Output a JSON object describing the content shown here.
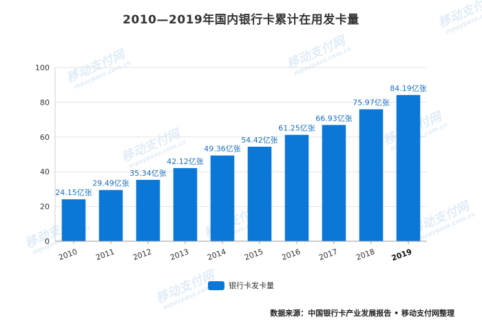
{
  "chart_data": {
    "type": "bar",
    "title": "2010—2019年国内银行卡累计在用发卡量",
    "categories": [
      "2010",
      "2011",
      "2012",
      "2013",
      "2014",
      "2015",
      "2016",
      "2017",
      "2018",
      "2019"
    ],
    "series": [
      {
        "name": "银行卡发卡量",
        "values": [
          24.15,
          29.49,
          35.34,
          42.12,
          49.36,
          54.42,
          61.25,
          66.93,
          75.97,
          84.19
        ],
        "data_labels": [
          "24.15亿张",
          "29.49亿张",
          "35.34亿张",
          "42.12亿张",
          "49.36亿张",
          "54.42亿张",
          "61.25亿张",
          "66.93亿张",
          "75.97亿张",
          "84.19亿张"
        ]
      }
    ],
    "ylim": [
      0,
      100
    ],
    "y_ticks": [
      "0",
      "20",
      "40",
      "60",
      "80",
      "100"
    ],
    "grid": true,
    "legend_position": "bottom",
    "colors": {
      "bar": "#0b77d6",
      "label": "#1a6fb9",
      "grid": "#e3e3e3"
    }
  },
  "source_note": "数据来源：中国银行卡产业发展报告 • 移动支付网整理",
  "watermark": {
    "brand": "移动支付网",
    "domain": "mpaypass.com.cn"
  }
}
